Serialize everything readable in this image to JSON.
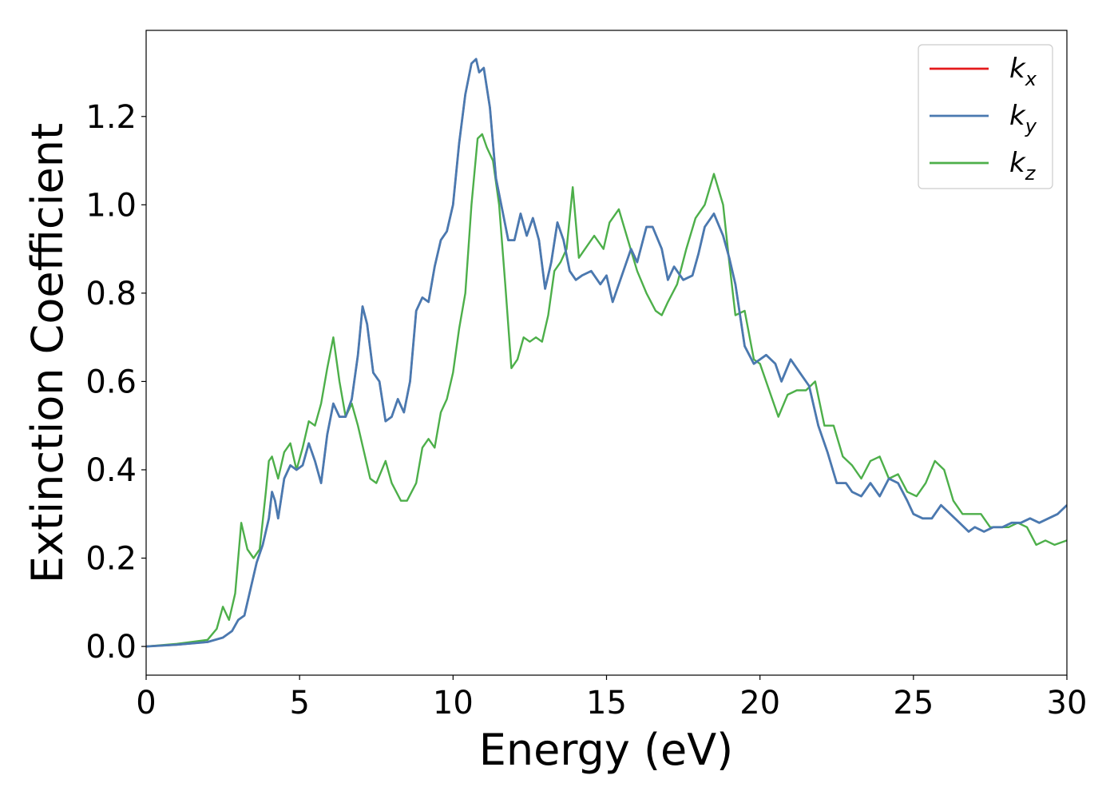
{
  "chart_data": {
    "type": "line",
    "xlabel": "Energy (eV)",
    "ylabel": "Extinction Coefficient",
    "xlim": [
      0,
      30
    ],
    "ylim": [
      -0.065,
      1.395
    ],
    "xticks": [
      0,
      5,
      10,
      15,
      20,
      25,
      30
    ],
    "yticks": [
      0.0,
      0.2,
      0.4,
      0.6,
      0.8,
      1.0,
      1.2
    ],
    "xtick_labels": [
      "0",
      "5",
      "10",
      "15",
      "20",
      "25",
      "30"
    ],
    "ytick_labels": [
      "0.0",
      "0.2",
      "0.4",
      "0.6",
      "0.8",
      "1.0",
      "1.2"
    ],
    "grid": false,
    "legend_position": "top-right",
    "series": [
      {
        "name": "k",
        "subscript": "x",
        "color": "#e41a1c",
        "x": [
          0,
          1,
          2,
          2.5,
          2.8,
          3.0,
          3.2,
          3.4,
          3.6,
          3.8,
          4.0,
          4.1,
          4.2,
          4.3,
          4.5,
          4.7,
          4.9,
          5.1,
          5.3,
          5.5,
          5.7,
          5.9,
          6.1,
          6.3,
          6.5,
          6.7,
          6.9,
          7.05,
          7.2,
          7.4,
          7.6,
          7.8,
          8.0,
          8.2,
          8.4,
          8.6,
          8.8,
          9.0,
          9.2,
          9.4,
          9.6,
          9.8,
          10.0,
          10.2,
          10.4,
          10.6,
          10.75,
          10.85,
          11.0,
          11.2,
          11.4,
          11.6,
          11.8,
          12.0,
          12.2,
          12.4,
          12.6,
          12.8,
          13.0,
          13.2,
          13.4,
          13.6,
          13.8,
          14.0,
          14.2,
          14.5,
          14.8,
          15.0,
          15.2,
          15.5,
          15.8,
          16.0,
          16.3,
          16.5,
          16.8,
          17.0,
          17.2,
          17.5,
          17.8,
          18.0,
          18.2,
          18.5,
          18.8,
          19.0,
          19.2,
          19.5,
          19.8,
          20.0,
          20.2,
          20.5,
          20.7,
          21.0,
          21.3,
          21.6,
          21.9,
          22.2,
          22.5,
          22.8,
          23.0,
          23.3,
          23.6,
          23.9,
          24.2,
          24.5,
          24.8,
          25.0,
          25.3,
          25.6,
          25.9,
          26.2,
          26.5,
          26.8,
          27.0,
          27.3,
          27.6,
          27.9,
          28.2,
          28.5,
          28.8,
          29.1,
          29.4,
          29.7,
          30.0
        ],
        "y": [
          0.0,
          0.004,
          0.01,
          0.02,
          0.035,
          0.06,
          0.07,
          0.13,
          0.19,
          0.23,
          0.29,
          0.35,
          0.33,
          0.29,
          0.38,
          0.41,
          0.4,
          0.41,
          0.46,
          0.42,
          0.37,
          0.48,
          0.55,
          0.52,
          0.52,
          0.56,
          0.66,
          0.77,
          0.73,
          0.62,
          0.6,
          0.51,
          0.52,
          0.56,
          0.53,
          0.6,
          0.76,
          0.79,
          0.78,
          0.86,
          0.92,
          0.94,
          1.0,
          1.14,
          1.25,
          1.32,
          1.33,
          1.3,
          1.31,
          1.22,
          1.06,
          0.99,
          0.92,
          0.92,
          0.98,
          0.93,
          0.97,
          0.92,
          0.81,
          0.87,
          0.96,
          0.92,
          0.85,
          0.83,
          0.84,
          0.85,
          0.82,
          0.84,
          0.78,
          0.84,
          0.9,
          0.87,
          0.95,
          0.95,
          0.9,
          0.83,
          0.86,
          0.83,
          0.84,
          0.89,
          0.95,
          0.98,
          0.93,
          0.88,
          0.82,
          0.68,
          0.64,
          0.65,
          0.66,
          0.64,
          0.6,
          0.65,
          0.62,
          0.59,
          0.5,
          0.44,
          0.37,
          0.37,
          0.35,
          0.34,
          0.37,
          0.34,
          0.38,
          0.37,
          0.33,
          0.3,
          0.29,
          0.29,
          0.32,
          0.3,
          0.28,
          0.26,
          0.27,
          0.26,
          0.27,
          0.27,
          0.28,
          0.28,
          0.29,
          0.28,
          0.29,
          0.3,
          0.32
        ]
      },
      {
        "name": "k",
        "subscript": "y",
        "color": "#4a79b0",
        "x": [
          0,
          1,
          2,
          2.5,
          2.8,
          3.0,
          3.2,
          3.4,
          3.6,
          3.8,
          4.0,
          4.1,
          4.2,
          4.3,
          4.5,
          4.7,
          4.9,
          5.1,
          5.3,
          5.5,
          5.7,
          5.9,
          6.1,
          6.3,
          6.5,
          6.7,
          6.9,
          7.05,
          7.2,
          7.4,
          7.6,
          7.8,
          8.0,
          8.2,
          8.4,
          8.6,
          8.8,
          9.0,
          9.2,
          9.4,
          9.6,
          9.8,
          10.0,
          10.2,
          10.4,
          10.6,
          10.75,
          10.85,
          11.0,
          11.2,
          11.4,
          11.6,
          11.8,
          12.0,
          12.2,
          12.4,
          12.6,
          12.8,
          13.0,
          13.2,
          13.4,
          13.6,
          13.8,
          14.0,
          14.2,
          14.5,
          14.8,
          15.0,
          15.2,
          15.5,
          15.8,
          16.0,
          16.3,
          16.5,
          16.8,
          17.0,
          17.2,
          17.5,
          17.8,
          18.0,
          18.2,
          18.5,
          18.8,
          19.0,
          19.2,
          19.5,
          19.8,
          20.0,
          20.2,
          20.5,
          20.7,
          21.0,
          21.3,
          21.6,
          21.9,
          22.2,
          22.5,
          22.8,
          23.0,
          23.3,
          23.6,
          23.9,
          24.2,
          24.5,
          24.8,
          25.0,
          25.3,
          25.6,
          25.9,
          26.2,
          26.5,
          26.8,
          27.0,
          27.3,
          27.6,
          27.9,
          28.2,
          28.5,
          28.8,
          29.1,
          29.4,
          29.7,
          30.0
        ],
        "y": [
          0.0,
          0.004,
          0.01,
          0.02,
          0.035,
          0.06,
          0.07,
          0.13,
          0.19,
          0.23,
          0.29,
          0.35,
          0.33,
          0.29,
          0.38,
          0.41,
          0.4,
          0.41,
          0.46,
          0.42,
          0.37,
          0.48,
          0.55,
          0.52,
          0.52,
          0.56,
          0.66,
          0.77,
          0.73,
          0.62,
          0.6,
          0.51,
          0.52,
          0.56,
          0.53,
          0.6,
          0.76,
          0.79,
          0.78,
          0.86,
          0.92,
          0.94,
          1.0,
          1.14,
          1.25,
          1.32,
          1.33,
          1.3,
          1.31,
          1.22,
          1.06,
          0.99,
          0.92,
          0.92,
          0.98,
          0.93,
          0.97,
          0.92,
          0.81,
          0.87,
          0.96,
          0.92,
          0.85,
          0.83,
          0.84,
          0.85,
          0.82,
          0.84,
          0.78,
          0.84,
          0.9,
          0.87,
          0.95,
          0.95,
          0.9,
          0.83,
          0.86,
          0.83,
          0.84,
          0.89,
          0.95,
          0.98,
          0.93,
          0.88,
          0.82,
          0.68,
          0.64,
          0.65,
          0.66,
          0.64,
          0.6,
          0.65,
          0.62,
          0.59,
          0.5,
          0.44,
          0.37,
          0.37,
          0.35,
          0.34,
          0.37,
          0.34,
          0.38,
          0.37,
          0.33,
          0.3,
          0.29,
          0.29,
          0.32,
          0.3,
          0.28,
          0.26,
          0.27,
          0.26,
          0.27,
          0.27,
          0.28,
          0.28,
          0.29,
          0.28,
          0.29,
          0.3,
          0.32
        ]
      },
      {
        "name": "k",
        "subscript": "z",
        "color": "#4daf4a",
        "x": [
          0,
          1,
          2,
          2.3,
          2.5,
          2.7,
          2.9,
          3.1,
          3.3,
          3.5,
          3.7,
          3.9,
          4.0,
          4.1,
          4.3,
          4.5,
          4.7,
          4.9,
          5.1,
          5.3,
          5.5,
          5.7,
          5.9,
          6.1,
          6.3,
          6.5,
          6.7,
          6.9,
          7.1,
          7.3,
          7.5,
          7.8,
          8.0,
          8.3,
          8.5,
          8.8,
          9.0,
          9.2,
          9.4,
          9.6,
          9.8,
          10.0,
          10.2,
          10.4,
          10.6,
          10.8,
          10.95,
          11.1,
          11.3,
          11.5,
          11.7,
          11.9,
          12.1,
          12.3,
          12.5,
          12.7,
          12.9,
          13.1,
          13.3,
          13.5,
          13.7,
          13.9,
          14.1,
          14.3,
          14.6,
          14.9,
          15.1,
          15.4,
          15.7,
          16.0,
          16.3,
          16.6,
          16.8,
          17.0,
          17.3,
          17.6,
          17.9,
          18.2,
          18.5,
          18.8,
          19.0,
          19.2,
          19.5,
          19.8,
          20.0,
          20.3,
          20.6,
          20.9,
          21.2,
          21.5,
          21.8,
          22.1,
          22.4,
          22.7,
          23.0,
          23.3,
          23.6,
          23.9,
          24.2,
          24.5,
          24.8,
          25.1,
          25.4,
          25.7,
          26.0,
          26.3,
          26.6,
          26.9,
          27.2,
          27.5,
          27.8,
          28.1,
          28.4,
          28.7,
          29.0,
          29.3,
          29.6,
          30.0
        ],
        "y": [
          0.0,
          0.006,
          0.015,
          0.04,
          0.09,
          0.06,
          0.12,
          0.28,
          0.22,
          0.2,
          0.22,
          0.35,
          0.42,
          0.43,
          0.38,
          0.44,
          0.46,
          0.4,
          0.45,
          0.51,
          0.5,
          0.55,
          0.63,
          0.7,
          0.6,
          0.52,
          0.55,
          0.5,
          0.44,
          0.38,
          0.37,
          0.42,
          0.37,
          0.33,
          0.33,
          0.37,
          0.45,
          0.47,
          0.45,
          0.53,
          0.56,
          0.62,
          0.72,
          0.8,
          1.0,
          1.15,
          1.16,
          1.13,
          1.1,
          1.0,
          0.82,
          0.63,
          0.65,
          0.7,
          0.69,
          0.7,
          0.69,
          0.75,
          0.85,
          0.87,
          0.9,
          1.04,
          0.88,
          0.9,
          0.93,
          0.9,
          0.96,
          0.99,
          0.92,
          0.85,
          0.8,
          0.76,
          0.75,
          0.78,
          0.82,
          0.9,
          0.97,
          1.0,
          1.07,
          1.0,
          0.87,
          0.75,
          0.76,
          0.65,
          0.64,
          0.58,
          0.52,
          0.57,
          0.58,
          0.58,
          0.6,
          0.5,
          0.5,
          0.43,
          0.41,
          0.38,
          0.42,
          0.43,
          0.38,
          0.39,
          0.35,
          0.34,
          0.37,
          0.42,
          0.4,
          0.33,
          0.3,
          0.3,
          0.3,
          0.27,
          0.27,
          0.27,
          0.28,
          0.27,
          0.23,
          0.24,
          0.23,
          0.24
        ]
      }
    ]
  }
}
